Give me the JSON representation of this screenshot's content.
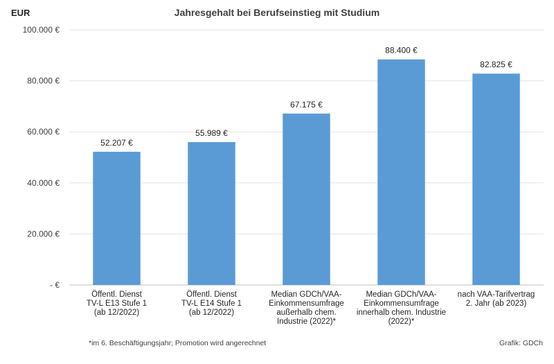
{
  "unit_label": "EUR",
  "footnote": "*im 6. Beschäftigungsjahr; Promotion wird angerechnet",
  "source": "Grafik: GDCh",
  "colors": {
    "bar": "#5b9bd5",
    "grid": "#e3e3e3",
    "axis": "#bfbfbf"
  },
  "chart_data": {
    "type": "bar",
    "title": "Jahresgehalt bei Berufseinstieg mit Studium",
    "xlabel": "",
    "ylabel": "",
    "ylim": [
      0,
      100000
    ],
    "grid": true,
    "y_ticks": [
      {
        "value": 0,
        "label": "-  €"
      },
      {
        "value": 20000,
        "label": "20.000 €"
      },
      {
        "value": 40000,
        "label": "40.000 €"
      },
      {
        "value": 60000,
        "label": "60.000 €"
      },
      {
        "value": 80000,
        "label": "80.000 €"
      },
      {
        "value": 100000,
        "label": "100.000 €"
      }
    ],
    "categories": [
      [
        "Öffentl. Dienst",
        "TV-L E13 Stufe 1",
        "(ab 12/2022)"
      ],
      [
        "Öffentl. Dienst",
        "TV-L E14 Stufe 1",
        "(ab 12/2022)"
      ],
      [
        "Median GDCh/VAA-",
        "Einkommensumfrage",
        "außerhalb chem.",
        "Industrie (2022)*"
      ],
      [
        "Median  GDCh/VAA-",
        "Einkommensumfrage",
        "innerhalb chem. Industrie",
        "(2022)*"
      ],
      [
        "nach VAA-Tarifvertrag",
        "2. Jahr (ab 2023)"
      ]
    ],
    "values": [
      52207,
      55989,
      67175,
      88400,
      82825
    ],
    "data_labels": [
      "52.207 €",
      "55.989 €",
      "67.175 €",
      "88.400 €",
      "82.825 €"
    ]
  }
}
